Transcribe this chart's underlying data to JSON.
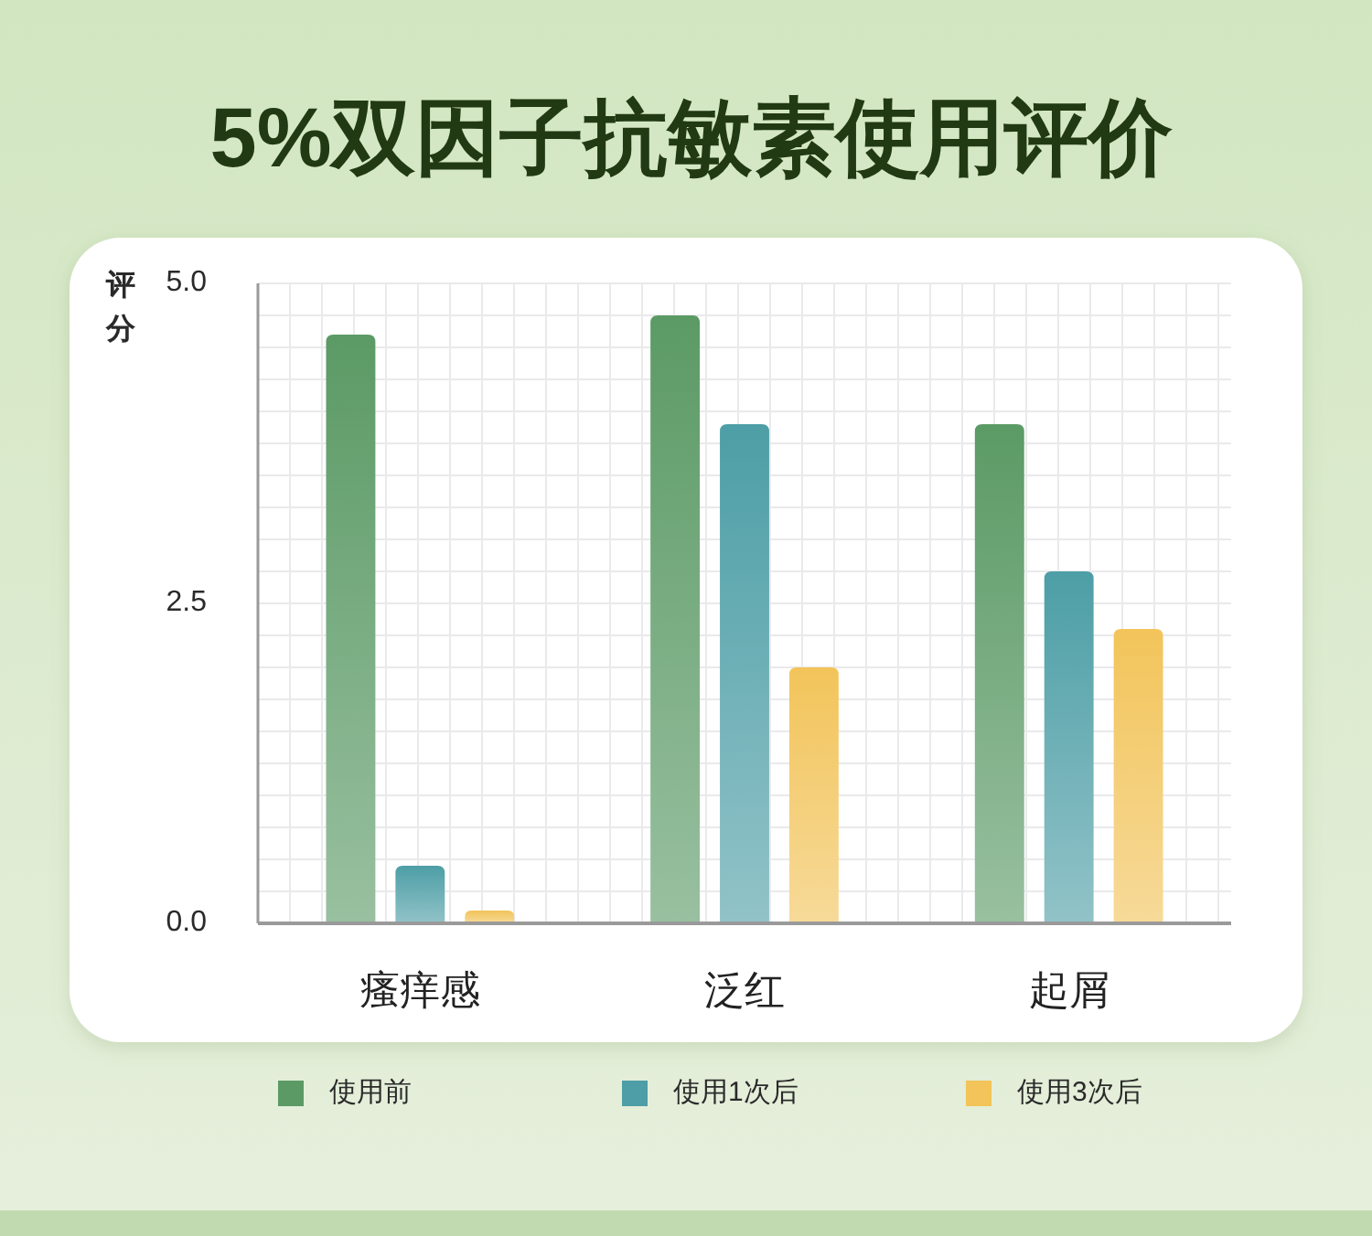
{
  "chart_data": {
    "type": "bar",
    "title": "5%双因子抗敏素使用评价",
    "ylabel": "评分",
    "categories": [
      "瘙痒感",
      "泛红",
      "起屑"
    ],
    "series": [
      {
        "name": "使用前",
        "color": "#5b9a65",
        "values": [
          4.6,
          4.75,
          3.9
        ]
      },
      {
        "name": "使用1次后",
        "color": "#4d9ea6",
        "values": [
          0.45,
          3.9,
          2.75
        ]
      },
      {
        "name": "使用3次后",
        "color": "#f2c45a",
        "values": [
          0.1,
          2.0,
          2.3
        ]
      }
    ],
    "ylim": [
      0,
      5
    ],
    "yticks": [
      {
        "value": 0,
        "label": "0.0"
      },
      {
        "value": 0.25,
        "label": null
      },
      {
        "value": 0.5,
        "label": null
      },
      {
        "value": 0.75,
        "label": null
      },
      {
        "value": 1,
        "label": null
      },
      {
        "value": 1.25,
        "label": null
      },
      {
        "value": 1.5,
        "label": null
      },
      {
        "value": 1.75,
        "label": null
      },
      {
        "value": 2,
        "label": null
      },
      {
        "value": 2.25,
        "label": null
      },
      {
        "value": 2.5,
        "label": "2.5"
      },
      {
        "value": 2.75,
        "label": null
      },
      {
        "value": 3,
        "label": null
      },
      {
        "value": 3.25,
        "label": null
      },
      {
        "value": 3.5,
        "label": null
      },
      {
        "value": 3.75,
        "label": null
      },
      {
        "value": 4,
        "label": null
      },
      {
        "value": 4.25,
        "label": null
      },
      {
        "value": 4.5,
        "label": null
      },
      {
        "value": 4.75,
        "label": null
      },
      {
        "value": 5,
        "label": "5.0"
      }
    ],
    "grid": true,
    "legend": "bottom"
  }
}
